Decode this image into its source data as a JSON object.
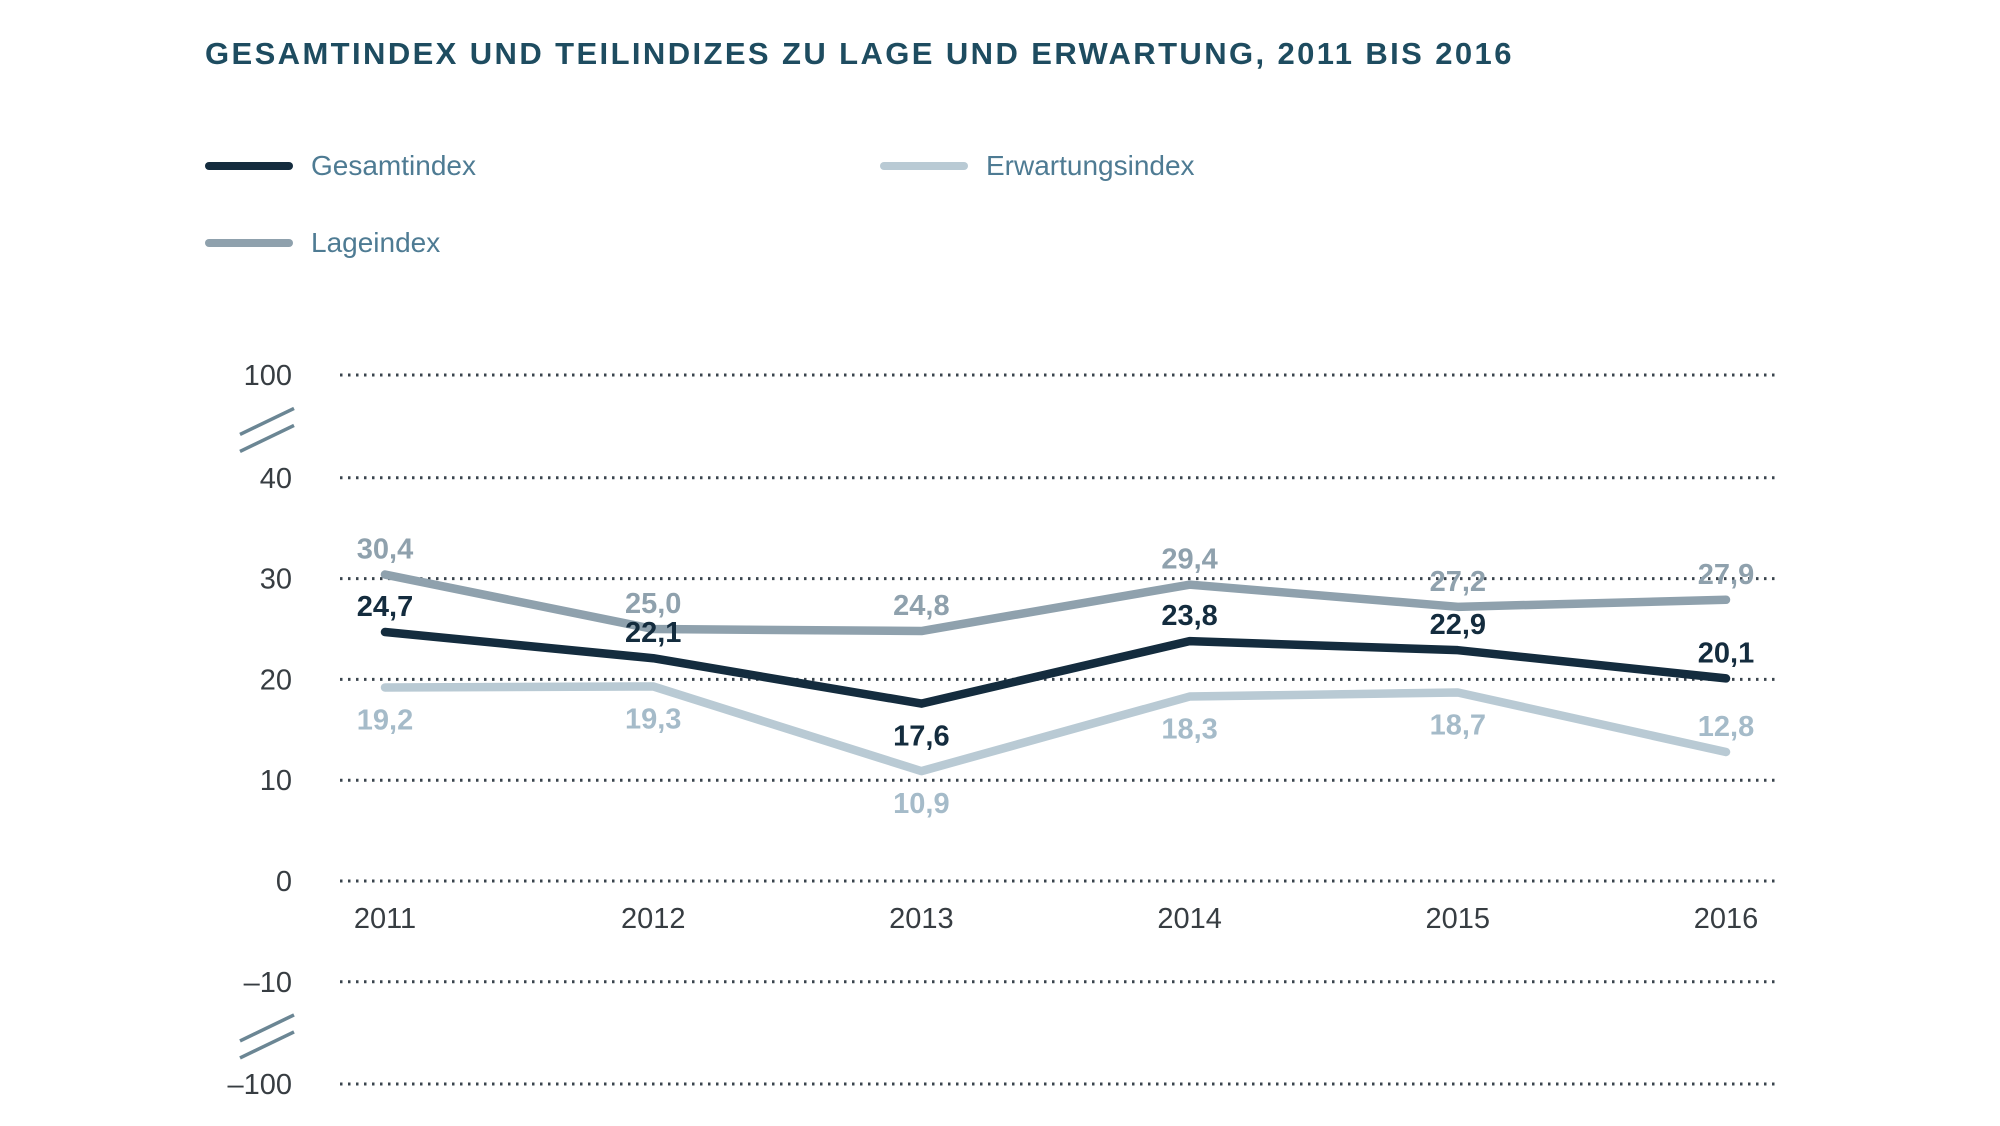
{
  "header": {
    "title": "GESAMTINDEX UND TEILINDIZES ZU LAGE UND ERWARTUNG, 2011 BIS 2016"
  },
  "legend": {
    "items": [
      {
        "id": "gesamtindex",
        "label": "Gesamtindex",
        "color": "#142c3e"
      },
      {
        "id": "erwartungsindex",
        "label": "Erwartungsindex",
        "color": "#b9cad4"
      },
      {
        "id": "lageindex",
        "label": "Lageindex",
        "color": "#8fa1ad"
      }
    ]
  },
  "chart_data": {
    "type": "line",
    "title": "GESAMTINDEX UND TEILINDIZES ZU LAGE UND ERWARTUNG, 2011 BIS 2016",
    "categories": [
      "2011",
      "2012",
      "2013",
      "2014",
      "2015",
      "2016"
    ],
    "series": [
      {
        "name": "Lageindex",
        "color": "#8fa1ad",
        "label_color": "#8fa1ad",
        "values": [
          30.4,
          25.0,
          24.8,
          29.4,
          27.2,
          27.9
        ],
        "point_labels": [
          "30,4",
          "25,0",
          "24,8",
          "29,4",
          "27,2",
          "27,9"
        ],
        "label_side": [
          "above",
          "above",
          "above",
          "above",
          "above",
          "above"
        ]
      },
      {
        "name": "Erwartungsindex",
        "color": "#b9cad4",
        "label_color": "#a5bbc9",
        "values": [
          19.2,
          19.3,
          10.9,
          18.3,
          18.7,
          12.8
        ],
        "point_labels": [
          "19,2",
          "19,3",
          "10,9",
          "18,3",
          "18,7",
          "12,8"
        ],
        "label_side": [
          "below",
          "below",
          "below",
          "below",
          "below",
          "above"
        ]
      },
      {
        "name": "Gesamtindex",
        "color": "#142c3e",
        "label_color": "#142c3e",
        "values": [
          24.7,
          22.1,
          17.6,
          23.8,
          22.9,
          20.1
        ],
        "point_labels": [
          "24,7",
          "22,1",
          "17,6",
          "23,8",
          "22,9",
          "20,1"
        ],
        "label_side": [
          "above",
          "above",
          "below",
          "above",
          "above",
          "above"
        ]
      }
    ],
    "y_axis": {
      "ticks": [
        {
          "label": "100",
          "value": 100
        },
        {
          "label": "40",
          "value": 40
        },
        {
          "label": "30",
          "value": 30
        },
        {
          "label": "20",
          "value": 20
        },
        {
          "label": "10",
          "value": 10
        },
        {
          "label": "0",
          "value": 0
        },
        {
          "label": "–10",
          "value": -10
        },
        {
          "label": "–100",
          "value": -100
        }
      ],
      "breaks": [
        {
          "between": [
            100,
            40
          ]
        },
        {
          "between": [
            -10,
            -100
          ]
        }
      ]
    },
    "grid": "dotted horizontal lines",
    "legend_position": "top-left, two columns",
    "ylim_note": "broken axis: -100 // -10..40 // 100",
    "colors": {
      "grid": "#3a444d",
      "axis_text": "#373d42",
      "break_mark": "#6b8694"
    }
  }
}
